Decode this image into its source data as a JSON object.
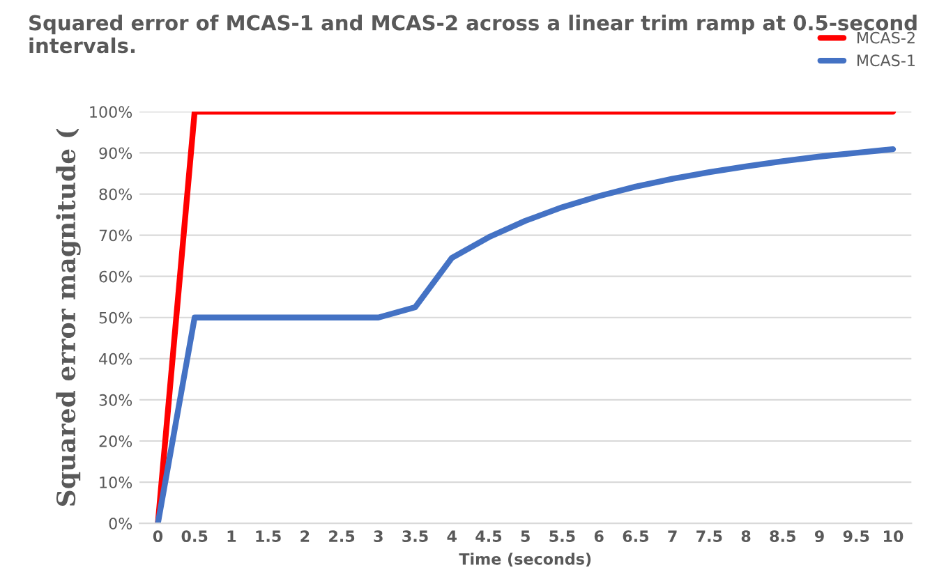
{
  "chart_data": {
    "type": "line",
    "title": "Squared error of MCAS-1 and MCAS-2 across a linear trim ramp at 0.5-second intervals.",
    "xlabel": "Time (seconds)",
    "ylabel": "Squared error magnitude (",
    "categories": [
      "0",
      "0.5",
      "1",
      "1.5",
      "2",
      "2.5",
      "3",
      "3.5",
      "4",
      "4.5",
      "5",
      "5.5",
      "6",
      "6.5",
      "7",
      "7.5",
      "8",
      "8.5",
      "9",
      "9.5",
      "10"
    ],
    "series": [
      {
        "name": "MCAS-2",
        "color": "#ff0000",
        "values": [
          0,
          100,
          100,
          100,
          100,
          100,
          100,
          100,
          100,
          100,
          100,
          100,
          100,
          100,
          100,
          100,
          100,
          100,
          100,
          100,
          100
        ]
      },
      {
        "name": "MCAS-1",
        "color": "#4472c4",
        "values": [
          0,
          50,
          50,
          50,
          50,
          50,
          50,
          52.5,
          64.5,
          69.5,
          73.5,
          76.8,
          79.5,
          81.8,
          83.7,
          85.3,
          86.7,
          88,
          89.1,
          90,
          90.9
        ]
      }
    ],
    "ylim": [
      0,
      100
    ],
    "yticks": [
      {
        "value": 0,
        "label": "0%"
      },
      {
        "value": 10,
        "label": "10%"
      },
      {
        "value": 20,
        "label": "20%"
      },
      {
        "value": 30,
        "label": "30%"
      },
      {
        "value": 40,
        "label": "40%"
      },
      {
        "value": 50,
        "label": "50%"
      },
      {
        "value": 60,
        "label": "60%"
      },
      {
        "value": 70,
        "label": "70%"
      },
      {
        "value": 80,
        "label": "80%"
      },
      {
        "value": 90,
        "label": "90%"
      },
      {
        "value": 100,
        "label": "100%"
      }
    ],
    "grid": "y",
    "legend": "top right",
    "marker": "none",
    "line_style": "solid"
  }
}
